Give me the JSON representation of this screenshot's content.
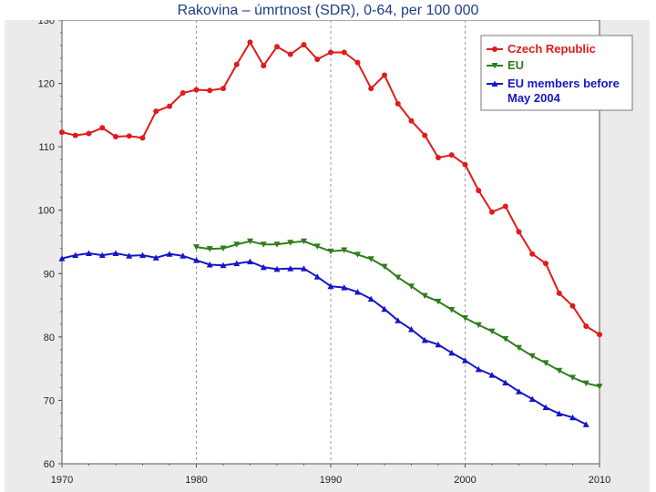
{
  "slide": {
    "title": "Rakovina – úmrtnost (SDR), 0-64, per 100 000"
  },
  "chart_data": {
    "type": "line",
    "title": "Rakovina – úmrtnost (SDR), 0-64, per 100 000",
    "xlabel": "",
    "ylabel": "",
    "xlim": [
      1970,
      2010
    ],
    "ylim": [
      60,
      130
    ],
    "x_ticks": [
      1970,
      1980,
      1990,
      2000,
      2010
    ],
    "y_ticks": [
      60,
      70,
      80,
      90,
      100,
      110,
      120,
      130
    ],
    "grid": {
      "vertical": true,
      "horizontal": false,
      "style": "dashed"
    },
    "legend_position": "top-right",
    "series": [
      {
        "name": "Czech Republic",
        "color": "#e01b1b",
        "marker": "circle",
        "x": [
          1970,
          1971,
          1972,
          1973,
          1974,
          1975,
          1976,
          1977,
          1978,
          1979,
          1980,
          1981,
          1982,
          1983,
          1984,
          1985,
          1986,
          1987,
          1988,
          1989,
          1990,
          1991,
          1992,
          1993,
          1994,
          1995,
          1996,
          1997,
          1998,
          1999,
          2000,
          2001,
          2002,
          2003,
          2004,
          2005,
          2006,
          2007,
          2008,
          2009,
          2010
        ],
        "values": [
          112.3,
          111.8,
          112.1,
          113.0,
          111.6,
          111.7,
          111.4,
          115.6,
          116.4,
          118.5,
          119.0,
          118.9,
          119.2,
          123.0,
          126.5,
          122.8,
          125.8,
          124.6,
          126.1,
          123.8,
          124.9,
          124.9,
          123.3,
          119.2,
          121.3,
          116.8,
          114.1,
          111.8,
          108.3,
          108.7,
          107.2,
          103.1,
          99.7,
          100.6,
          96.6,
          93.1,
          91.6,
          86.9,
          84.9,
          81.7,
          80.4
        ]
      },
      {
        "name": "EU",
        "color": "#2e7d1a",
        "marker": "triangle-down",
        "x": [
          1980,
          1981,
          1982,
          1983,
          1984,
          1985,
          1986,
          1987,
          1988,
          1989,
          1990,
          1991,
          1992,
          1993,
          1994,
          1995,
          1996,
          1997,
          1998,
          1999,
          2000,
          2001,
          2002,
          2003,
          2004,
          2005,
          2006,
          2007,
          2008,
          2009,
          2010
        ],
        "values": [
          94.2,
          93.9,
          94.0,
          94.6,
          95.1,
          94.6,
          94.6,
          94.9,
          95.1,
          94.3,
          93.5,
          93.7,
          93.0,
          92.3,
          91.1,
          89.4,
          88.0,
          86.5,
          85.6,
          84.3,
          83.0,
          81.9,
          80.9,
          79.7,
          78.3,
          77.0,
          75.9,
          74.7,
          73.6,
          72.7,
          72.2
        ]
      },
      {
        "name": "EU members before May 2004",
        "color": "#1515c8",
        "marker": "triangle-up",
        "x": [
          1970,
          1971,
          1972,
          1973,
          1974,
          1975,
          1976,
          1977,
          1978,
          1979,
          1980,
          1981,
          1982,
          1983,
          1984,
          1985,
          1986,
          1987,
          1988,
          1989,
          1990,
          1991,
          1992,
          1993,
          1994,
          1995,
          1996,
          1997,
          1998,
          1999,
          2000,
          2001,
          2002,
          2003,
          2004,
          2005,
          2006,
          2007,
          2008,
          2009
        ],
        "values": [
          92.4,
          92.9,
          93.2,
          92.9,
          93.2,
          92.8,
          92.9,
          92.5,
          93.1,
          92.8,
          92.1,
          91.4,
          91.3,
          91.6,
          91.9,
          91.0,
          90.7,
          90.8,
          90.8,
          89.5,
          88.0,
          87.8,
          87.1,
          86.0,
          84.4,
          82.6,
          81.2,
          79.5,
          78.8,
          77.5,
          76.3,
          74.9,
          74.0,
          72.8,
          71.4,
          70.2,
          68.9,
          67.9,
          67.3,
          66.2
        ]
      }
    ]
  }
}
